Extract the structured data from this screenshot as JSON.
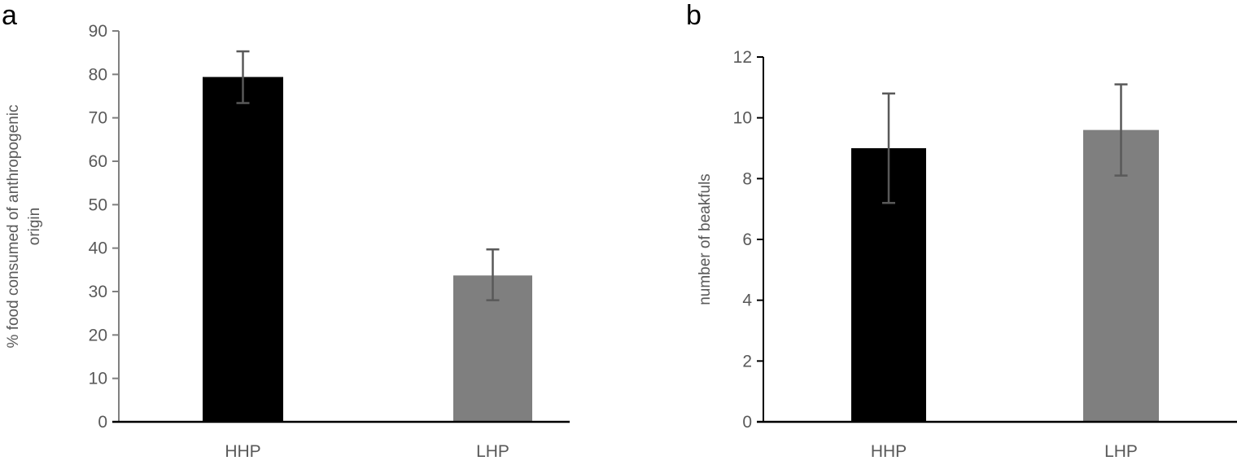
{
  "chart_data": [
    {
      "type": "bar",
      "panel_label": "a",
      "title": "",
      "xlabel": "",
      "ylabel_lines": [
        "% food consumed of anthropogenic",
        "origin"
      ],
      "categories": [
        "HHP",
        "LHP"
      ],
      "values": [
        79.4,
        33.7
      ],
      "error_upper": [
        85.3,
        39.7
      ],
      "error_lower": [
        73.4,
        28.0
      ],
      "bar_colors": [
        "#000000",
        "#7f7f7f"
      ],
      "ylim": [
        0,
        90
      ],
      "yticks": [
        0,
        10,
        20,
        30,
        40,
        50,
        60,
        70,
        80,
        90
      ],
      "grid": false
    },
    {
      "type": "bar",
      "panel_label": "b",
      "title": "",
      "xlabel": "",
      "ylabel_lines": [
        "number of beakfuls"
      ],
      "categories": [
        "HHP",
        "LHP"
      ],
      "values": [
        9.0,
        9.6
      ],
      "error_upper": [
        10.8,
        11.1
      ],
      "error_lower": [
        7.2,
        8.1
      ],
      "bar_colors": [
        "#000000",
        "#7f7f7f"
      ],
      "ylim": [
        0,
        12
      ],
      "yticks": [
        0,
        2,
        4,
        6,
        8,
        10,
        12
      ],
      "grid": false
    }
  ]
}
